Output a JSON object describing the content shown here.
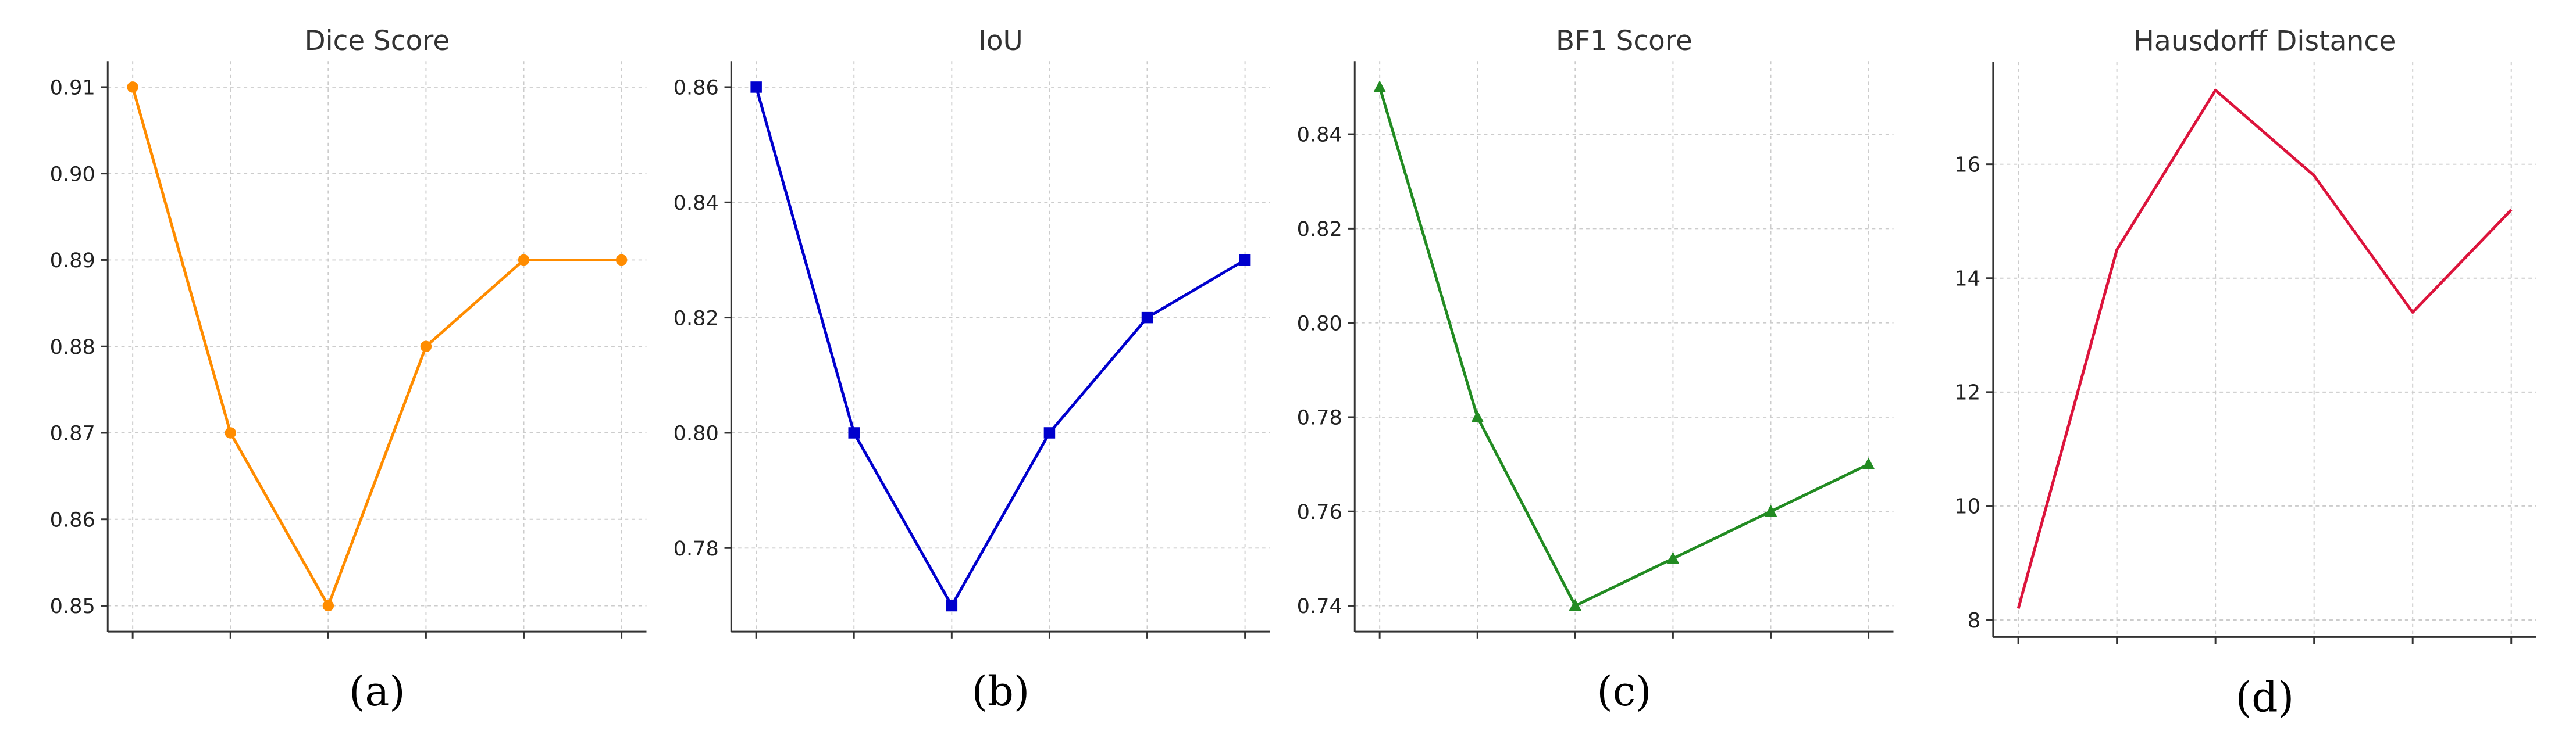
{
  "chart_data": [
    {
      "type": "line",
      "title": "Dice Score",
      "caption": "(a)",
      "x": [
        1,
        2,
        3,
        4,
        5,
        6
      ],
      "values": [
        0.91,
        0.87,
        0.85,
        0.88,
        0.89,
        0.89
      ],
      "yticks": [
        "0.85",
        "0.86",
        "0.87",
        "0.88",
        "0.89",
        "0.90",
        "0.91"
      ],
      "ylim": [
        0.847,
        0.913
      ],
      "color": "#ff8c00",
      "marker": "circle",
      "grid": true
    },
    {
      "type": "line",
      "title": "IoU",
      "caption": "(b)",
      "x": [
        1,
        2,
        3,
        4,
        5,
        6
      ],
      "values": [
        0.86,
        0.8,
        0.77,
        0.8,
        0.82,
        0.83
      ],
      "yticks": [
        "0.78",
        "0.80",
        "0.82",
        "0.84",
        "0.86"
      ],
      "ylim": [
        0.7655,
        0.8645
      ],
      "color": "#0000cd",
      "marker": "square",
      "grid": true
    },
    {
      "type": "line",
      "title": "BF1 Score",
      "caption": "(c)",
      "x": [
        1,
        2,
        3,
        4,
        5,
        6
      ],
      "values": [
        0.85,
        0.78,
        0.74,
        0.75,
        0.76,
        0.77
      ],
      "yticks": [
        "0.74",
        "0.76",
        "0.78",
        "0.80",
        "0.82",
        "0.84"
      ],
      "ylim": [
        0.7345,
        0.8555
      ],
      "color": "#228b22",
      "marker": "triangle",
      "grid": true
    },
    {
      "type": "line",
      "title": "Hausdorff Distance",
      "caption": "(d)",
      "x": [
        1,
        2,
        3,
        4,
        5,
        6
      ],
      "values": [
        8.2,
        14.5,
        17.3,
        15.8,
        13.4,
        15.2
      ],
      "yticks": [
        "8",
        "10",
        "12",
        "14",
        "16"
      ],
      "ylim": [
        7.7,
        17.8
      ],
      "color": "#dc143c",
      "marker": "none",
      "grid": true
    }
  ]
}
